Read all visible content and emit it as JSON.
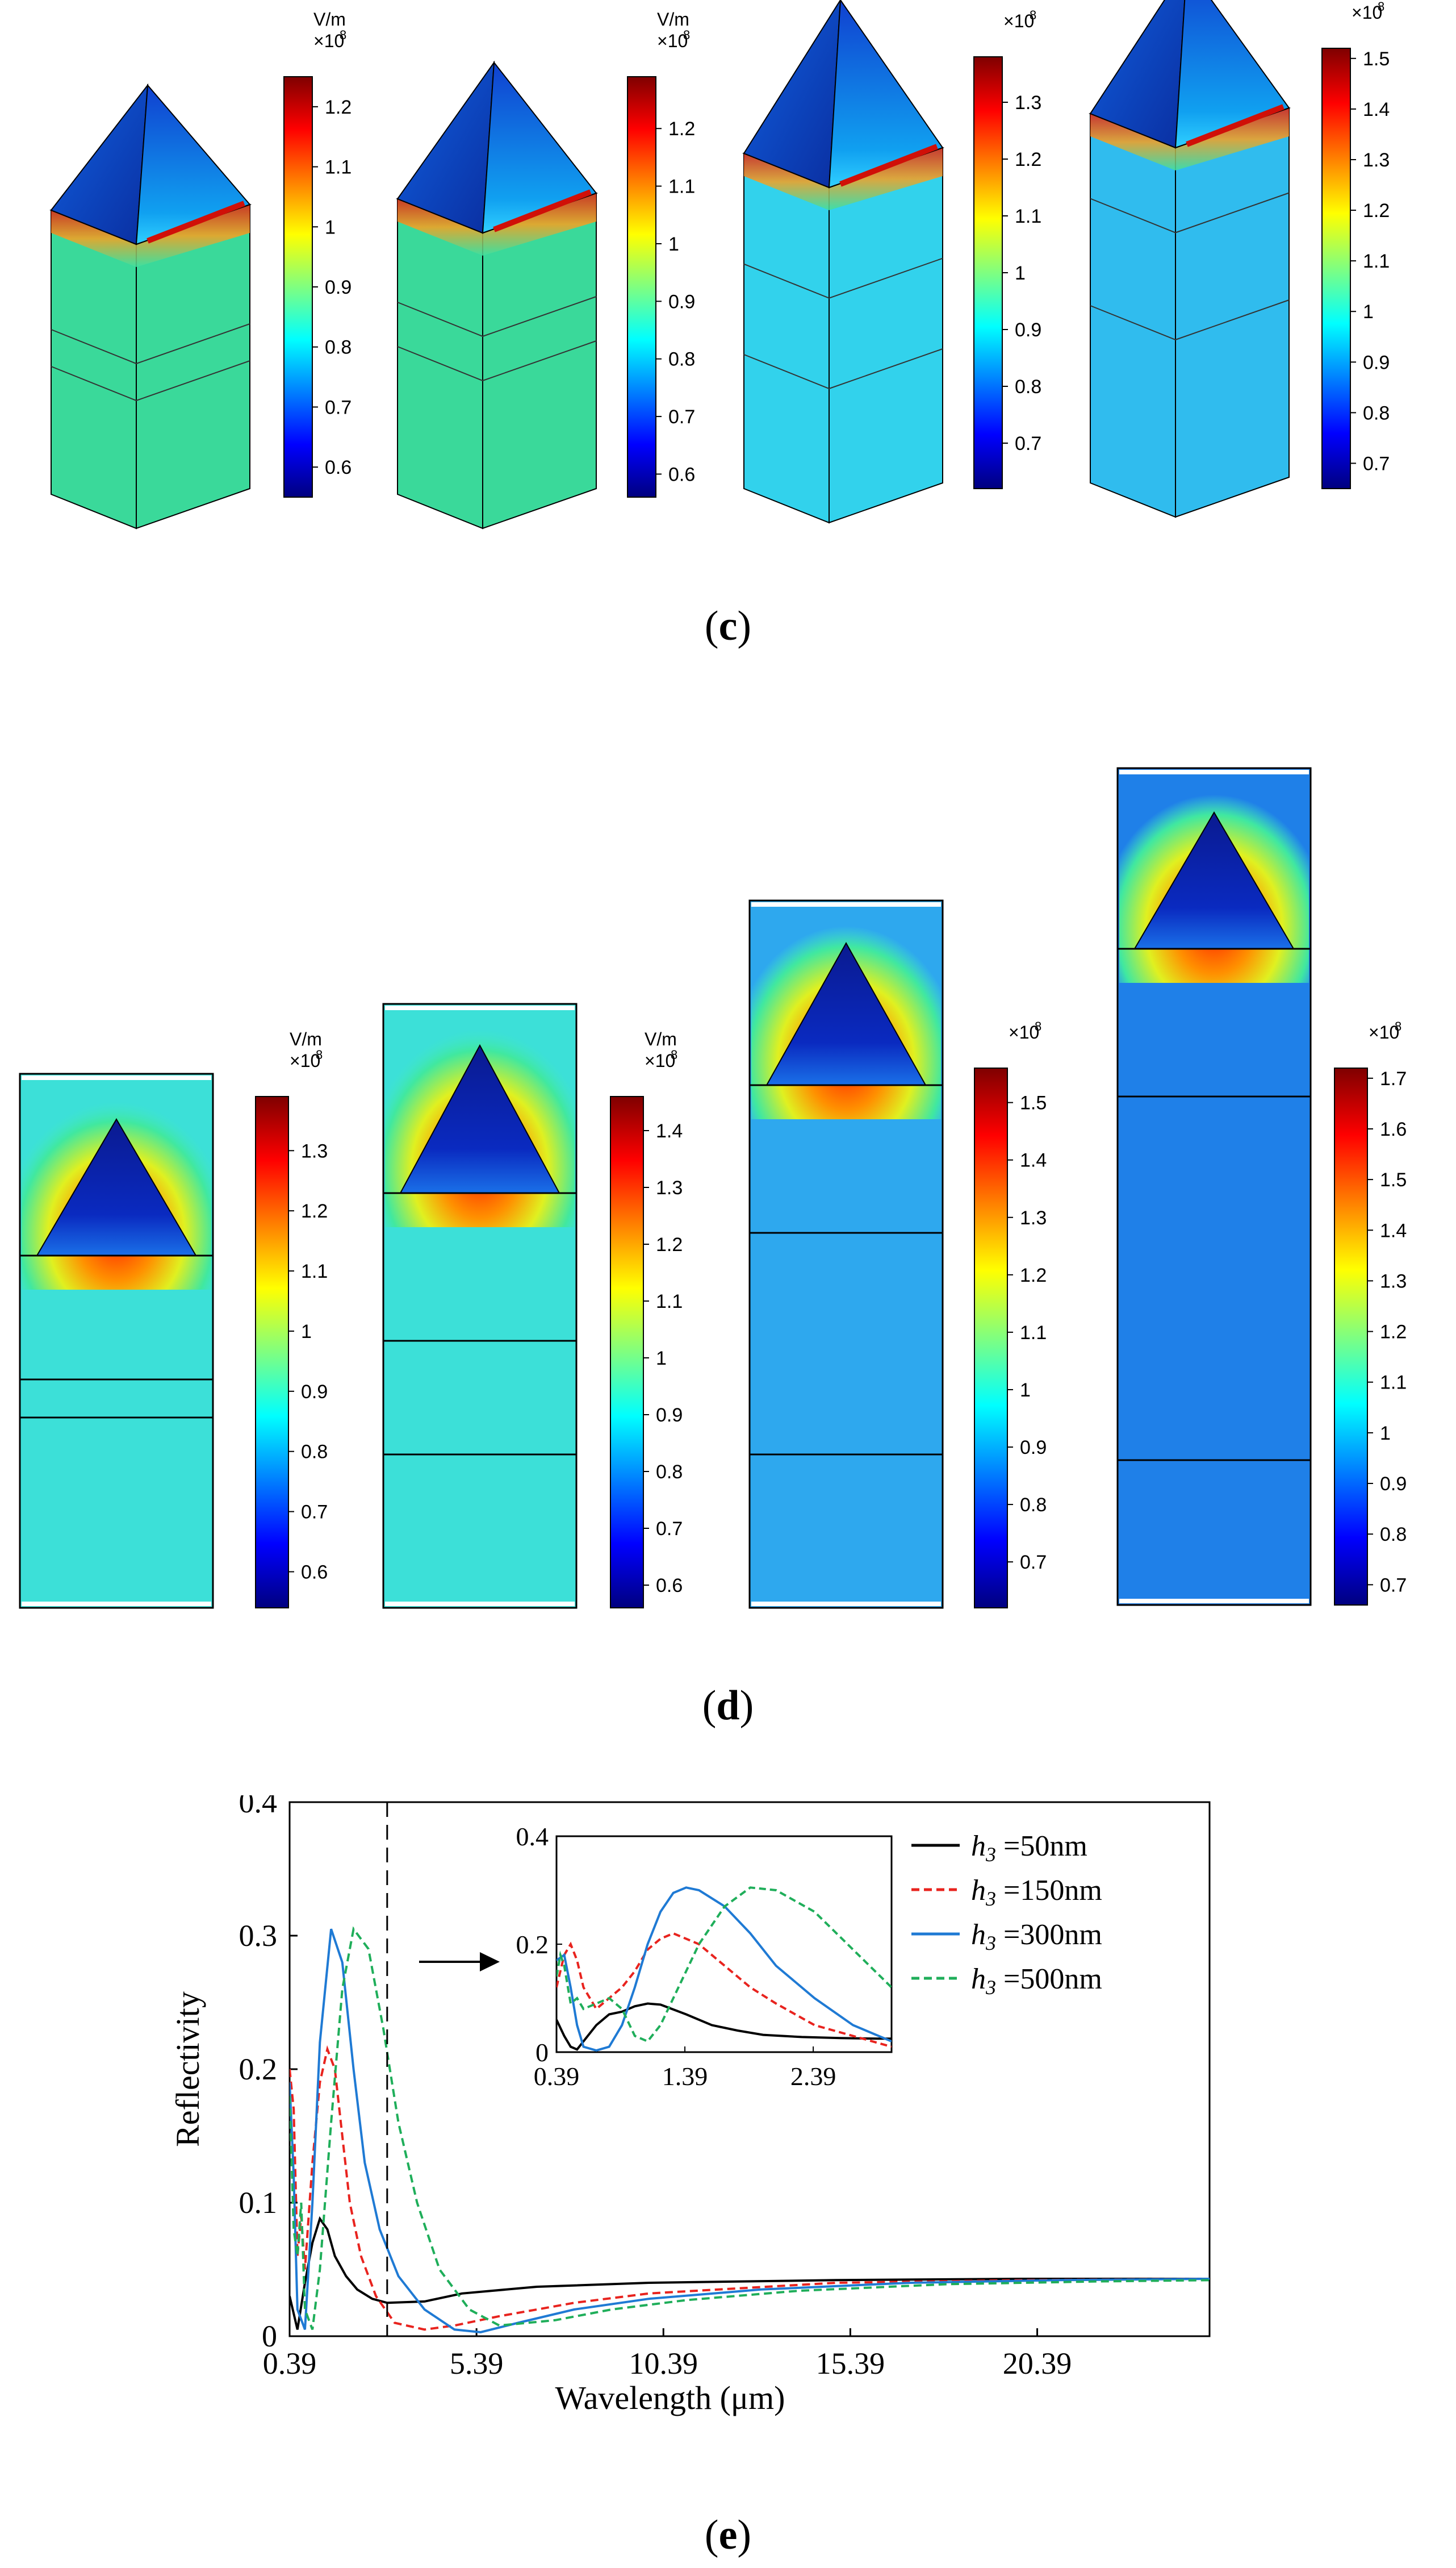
{
  "panel_c": {
    "label": "c",
    "colorbars": [
      {
        "unit": "V/m",
        "exponent": "×10",
        "power": "8",
        "ticks": [
          "1.2",
          "1.1",
          "1",
          "0.9",
          "0.8",
          "0.7",
          "0.6"
        ],
        "min": 0.55,
        "max": 1.25
      },
      {
        "unit": "V/m",
        "exponent": "×10",
        "power": "8",
        "ticks": [
          "1.2",
          "1.1",
          "1",
          "0.9",
          "0.8",
          "0.7",
          "0.6"
        ],
        "min": 0.56,
        "max": 1.29
      },
      {
        "unit": "",
        "exponent": "×10",
        "power": "8",
        "ticks": [
          "1.3",
          "1.2",
          "1.1",
          "1",
          "0.9",
          "0.8",
          "0.7"
        ],
        "min": 0.62,
        "max": 1.38
      },
      {
        "unit": "",
        "exponent": "×10",
        "power": "8",
        "ticks": [
          "1.5",
          "1.4",
          "1.3",
          "1.2",
          "1.1",
          "1",
          "0.9",
          "0.8",
          "0.7"
        ],
        "min": 0.65,
        "max": 1.52
      }
    ]
  },
  "panel_d": {
    "label": "d",
    "colorbars": [
      {
        "unit": "V/m",
        "exponent": "×10",
        "power": "8",
        "ticks": [
          "1.3",
          "1.2",
          "1.1",
          "1",
          "0.9",
          "0.8",
          "0.7",
          "0.6"
        ],
        "min": 0.54,
        "max": 1.39
      },
      {
        "unit": "V/m",
        "exponent": "×10",
        "power": "8",
        "ticks": [
          "1.4",
          "1.3",
          "1.2",
          "1.1",
          "1",
          "0.9",
          "0.8",
          "0.7",
          "0.6"
        ],
        "min": 0.56,
        "max": 1.46
      },
      {
        "unit": "",
        "exponent": "×10",
        "power": "8",
        "ticks": [
          "1.5",
          "1.4",
          "1.3",
          "1.2",
          "1.1",
          "1",
          "0.9",
          "0.8",
          "0.7"
        ],
        "min": 0.62,
        "max": 1.56
      },
      {
        "unit": "",
        "exponent": "×10",
        "power": "8",
        "ticks": [
          "1.7",
          "1.6",
          "1.5",
          "1.4",
          "1.3",
          "1.2",
          "1.1",
          "1",
          "0.9",
          "0.8",
          "0.7"
        ],
        "min": 0.66,
        "max": 1.72
      }
    ]
  },
  "panel_e": {
    "label": "e"
  },
  "chart_data": {
    "type": "line",
    "xlabel": "Wavelength (μm)",
    "ylabel": "Reflectivity",
    "xlim": [
      0.39,
      25.0
    ],
    "ylim": [
      0,
      0.4
    ],
    "xticks": [
      "0.39",
      "5.39",
      "10.39",
      "15.39",
      "20.39"
    ],
    "yticks": [
      "0",
      "0.1",
      "0.2",
      "0.3",
      "0.4"
    ],
    "vline_x": 3.0,
    "legend_position": "top-right",
    "series": [
      {
        "name": "h3 =50nm",
        "name_var": "h",
        "name_sub": "3",
        "name_rest": " =50nm",
        "color": "#000000",
        "dash": "solid",
        "x": [
          0.39,
          0.6,
          0.8,
          1.0,
          1.2,
          1.4,
          1.6,
          1.9,
          2.2,
          2.6,
          3.0,
          4.0,
          5.0,
          7.0,
          10.0,
          15.0,
          20.0,
          25.0
        ],
        "y": [
          0.03,
          0.005,
          0.04,
          0.07,
          0.088,
          0.08,
          0.06,
          0.045,
          0.035,
          0.028,
          0.025,
          0.026,
          0.032,
          0.037,
          0.04,
          0.042,
          0.043,
          0.043
        ]
      },
      {
        "name": "h3 =150nm",
        "name_var": "h",
        "name_sub": "3",
        "name_rest": " =150nm",
        "color": "#e8231e",
        "dash": "dashed",
        "x": [
          0.39,
          0.5,
          0.6,
          0.7,
          0.8,
          1.0,
          1.2,
          1.4,
          1.6,
          1.8,
          2.0,
          2.3,
          2.7,
          3.2,
          4.0,
          4.8,
          6.0,
          8.0,
          10.0,
          15.0,
          20.0,
          25.0
        ],
        "y": [
          0.2,
          0.17,
          0.06,
          0.09,
          0.05,
          0.13,
          0.19,
          0.215,
          0.2,
          0.15,
          0.1,
          0.06,
          0.03,
          0.01,
          0.005,
          0.008,
          0.015,
          0.025,
          0.032,
          0.04,
          0.042,
          0.043
        ]
      },
      {
        "name": "h3 =300nm",
        "name_var": "h",
        "name_sub": "3",
        "name_rest": " =300nm",
        "color": "#1f7ad4",
        "dash": "solid",
        "x": [
          0.39,
          0.5,
          0.6,
          0.8,
          1.0,
          1.2,
          1.5,
          1.8,
          2.1,
          2.4,
          2.8,
          3.3,
          4.0,
          4.8,
          5.5,
          6.5,
          8.0,
          10.0,
          13.0,
          17.0,
          21.0,
          25.0
        ],
        "y": [
          0.19,
          0.12,
          0.02,
          0.005,
          0.1,
          0.22,
          0.305,
          0.28,
          0.2,
          0.13,
          0.08,
          0.045,
          0.02,
          0.005,
          0.003,
          0.01,
          0.02,
          0.028,
          0.035,
          0.04,
          0.042,
          0.043
        ]
      },
      {
        "name": "h3 =500nm",
        "name_var": "h",
        "name_sub": "3",
        "name_rest": " =500nm",
        "color": "#1fae5a",
        "dash": "dashed",
        "x": [
          0.39,
          0.5,
          0.6,
          0.7,
          0.8,
          1.0,
          1.2,
          1.5,
          1.8,
          2.1,
          2.5,
          2.9,
          3.3,
          3.8,
          4.4,
          5.2,
          6.0,
          7.5,
          9.0,
          11.0,
          14.0,
          18.0,
          22.0,
          25.0
        ],
        "y": [
          0.18,
          0.08,
          0.06,
          0.1,
          0.02,
          0.005,
          0.05,
          0.16,
          0.26,
          0.305,
          0.29,
          0.23,
          0.16,
          0.1,
          0.05,
          0.02,
          0.008,
          0.012,
          0.02,
          0.027,
          0.034,
          0.039,
          0.041,
          0.042
        ]
      }
    ],
    "inset": {
      "xlim": [
        0.39,
        3.0
      ],
      "ylim": [
        0,
        0.4
      ],
      "xticks": [
        "0.39",
        "1.39",
        "2.39"
      ],
      "yticks": [
        "0",
        "0.2",
        "0.4"
      ],
      "series": [
        {
          "x": [
            0.39,
            0.45,
            0.5,
            0.55,
            0.6,
            0.7,
            0.8,
            0.9,
            1.0,
            1.1,
            1.2,
            1.4,
            1.6,
            1.8,
            2.0,
            2.3,
            2.6,
            2.9,
            3.0
          ],
          "y": [
            0.06,
            0.03,
            0.01,
            0.005,
            0.02,
            0.05,
            0.07,
            0.075,
            0.085,
            0.09,
            0.088,
            0.07,
            0.05,
            0.04,
            0.032,
            0.028,
            0.026,
            0.025,
            0.025
          ]
        },
        {
          "x": [
            0.39,
            0.45,
            0.5,
            0.55,
            0.6,
            0.7,
            0.8,
            0.9,
            1.0,
            1.1,
            1.2,
            1.3,
            1.5,
            1.7,
            1.9,
            2.1,
            2.4,
            2.7,
            3.0
          ],
          "y": [
            0.12,
            0.18,
            0.2,
            0.17,
            0.12,
            0.08,
            0.1,
            0.12,
            0.15,
            0.19,
            0.21,
            0.22,
            0.2,
            0.16,
            0.12,
            0.09,
            0.05,
            0.03,
            0.01
          ]
        },
        {
          "x": [
            0.39,
            0.45,
            0.5,
            0.55,
            0.6,
            0.7,
            0.8,
            0.9,
            1.0,
            1.1,
            1.2,
            1.3,
            1.4,
            1.5,
            1.7,
            1.9,
            2.1,
            2.4,
            2.7,
            3.0
          ],
          "y": [
            0.17,
            0.18,
            0.12,
            0.05,
            0.01,
            0.003,
            0.01,
            0.05,
            0.12,
            0.2,
            0.26,
            0.295,
            0.305,
            0.3,
            0.27,
            0.22,
            0.16,
            0.1,
            0.05,
            0.02
          ]
        },
        {
          "x": [
            0.39,
            0.42,
            0.45,
            0.5,
            0.55,
            0.6,
            0.7,
            0.8,
            0.9,
            1.0,
            1.1,
            1.2,
            1.3,
            1.5,
            1.7,
            1.9,
            2.1,
            2.4,
            2.7,
            3.0
          ],
          "y": [
            0.14,
            0.18,
            0.16,
            0.09,
            0.1,
            0.08,
            0.09,
            0.1,
            0.08,
            0.03,
            0.02,
            0.05,
            0.1,
            0.2,
            0.27,
            0.305,
            0.3,
            0.26,
            0.19,
            0.12
          ]
        }
      ]
    }
  }
}
